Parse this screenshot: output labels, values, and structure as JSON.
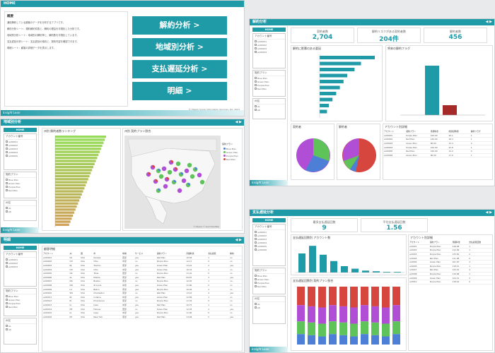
{
  "home": {
    "title": "HOME",
    "intro_heading": "概要",
    "intro_lines": [
      "通信解約している顧客のデータを分析するアプリです。",
      "解約分析シート：規約解約件数と、解約の理由を可視化した分析です。",
      "地域別分析シート：地域別の解約率と、解約数を可視化しています。",
      "支払遅延分析シート：支払遅延の傾向と、契約内容を確認できます。",
      "明細シート：顧客の詳細データを表示します。"
    ],
    "buttons": [
      "解約分析 >",
      "地域別分析 >",
      "支払遅延分析 >",
      "明細 >"
    ],
    "copyright": "© Hitachi Social Information Services, Ltd. 2021",
    "footer_logo": "Insight Lean"
  },
  "churn": {
    "title": "解約分析",
    "kpis": [
      {
        "label": "契約者数",
        "value": "2,704"
      },
      {
        "label": "解約リスクがある契約者数",
        "value": "204件"
      },
      {
        "label": "解約者数",
        "value": "456"
      }
    ],
    "reason_title": "解約に影響のある要因",
    "risk_title": "解約リスク",
    "trend_title": "将来の解約フラグ",
    "pie_titles": [
      "契約者",
      "解約者"
    ],
    "table_title": "アカウント別詳細",
    "table_headers": [
      "アカウント",
      "契約プラン",
      "月額料金",
      "総通話時間",
      "解約フラグ"
    ],
    "table_rows": [
      [
        "ac00001",
        "Purple Plan",
        "100.00",
        "20.1",
        "1"
      ],
      [
        "ac00002",
        "Red Plan",
        "120.00",
        "18.3",
        "1"
      ],
      [
        "ac00003",
        "Green Plan",
        "80.00",
        "15.4",
        "0"
      ],
      [
        "ac00004",
        "Purple Plan",
        "100.00",
        "22.8",
        "1"
      ],
      [
        "ac00005",
        "Red Plan",
        "120.00",
        "12.2",
        "0"
      ],
      [
        "ac00006",
        "Green Plan",
        "80.00",
        "17.0",
        "1"
      ]
    ]
  },
  "region": {
    "title": "地域別分析",
    "bar_title": "州別 解約者数ランキング",
    "map_title": "州別 契約プラン割合",
    "legend_title": "契約プラン",
    "legend_items": [
      "Blue Plan",
      "Green Plan",
      "Purple Plan",
      "Red Plan"
    ],
    "map_credit": "© Mapbox © OpenStreetMap"
  },
  "delay": {
    "title": "支払遅延分析",
    "kpis": [
      {
        "label": "最多支払遅延回数",
        "value": "9"
      },
      {
        "label": "平均支払遅延回数",
        "value": "1.56"
      }
    ],
    "hist_title": "支払遅延回数別 アカウント数",
    "stack_title": "支払遅延回数別 契約プラン割合",
    "table_title": "アカウント別詳細",
    "table_headers": [
      "アカウント",
      "契約プラン",
      "月額料金",
      "支払遅延回数"
    ],
    "table_rows": [
      [
        "ac0001",
        "Purple Plan",
        "118.08",
        "1"
      ],
      [
        "ac0002",
        "Purple Plan",
        "112.09",
        "1"
      ],
      [
        "ac0003",
        "Purple Plan",
        "133.50",
        "2"
      ],
      [
        "ac0004",
        "Red Plan",
        "111.08",
        "0"
      ],
      [
        "ac0005",
        "Green Plan",
        "101.87",
        "3"
      ],
      [
        "ac0006",
        "Purple Plan",
        "118.21",
        "1"
      ],
      [
        "ac0007",
        "Red Plan",
        "120.44",
        "4"
      ],
      [
        "ac0008",
        "Purple Plan",
        "119.98",
        "1"
      ],
      [
        "ac0009",
        "Green Plan",
        "124.31",
        "2"
      ],
      [
        "ac0010",
        "Purple Plan",
        "118.44",
        "0"
      ]
    ]
  },
  "detail": {
    "title": "明細",
    "section_title": "顧客明細",
    "table_headers": [
      "アカウント",
      "州",
      "国",
      "市",
      "地域",
      "サービス",
      "契約プラン",
      "月額料金",
      "支払遅延",
      "解約"
    ],
    "table_rows": [
      [
        "ac00001",
        "KS",
        "USA",
        "Kansas",
        "西部",
        "yes",
        "Red Plan",
        "10.56",
        "1",
        "no"
      ],
      [
        "ac00002",
        "OH",
        "USA",
        "Ohio",
        "中部",
        "no",
        "Purple Plan",
        "12.17",
        "0",
        "no"
      ],
      [
        "ac00003",
        "NJ",
        "USA",
        "Trenton",
        "東部",
        "yes",
        "Green Plan",
        "13.22",
        "2",
        "yes"
      ],
      [
        "ac00004",
        "OH",
        "USA",
        "Ohio",
        "中部",
        "yes",
        "Green Plan",
        "10.33",
        "1",
        "no"
      ],
      [
        "ac00005",
        "OK",
        "USA",
        "Tulsa",
        "西部",
        "no",
        "Purple Plan",
        "11.01",
        "0",
        "no"
      ],
      [
        "ac00006",
        "AL",
        "USA",
        "Mobile",
        "南部",
        "yes",
        "Red Plan",
        "09.87",
        "3",
        "yes"
      ],
      [
        "ac00007",
        "MA",
        "USA",
        "Boston",
        "東部",
        "no",
        "Purple Plan",
        "12.45",
        "1",
        "no"
      ],
      [
        "ac00008",
        "MO",
        "USA",
        "St Louis",
        "中部",
        "yes",
        "Green Plan",
        "11.66",
        "0",
        "no"
      ],
      [
        "ac00009",
        "LA",
        "USA",
        "Baton",
        "南部",
        "yes",
        "Purple Plan",
        "10.02",
        "2",
        "no"
      ],
      [
        "ac00010",
        "WV",
        "USA",
        "Charleston",
        "東部",
        "no",
        "Red Plan",
        "13.10",
        "4",
        "yes"
      ],
      [
        "ac00011",
        "IN",
        "USA",
        "Indiana",
        "中部",
        "yes",
        "Green Plan",
        "12.89",
        "1",
        "no"
      ],
      [
        "ac00012",
        "RI",
        "USA",
        "Providence",
        "東部",
        "no",
        "Purple Plan",
        "11.34",
        "0",
        "no"
      ],
      [
        "ac00013",
        "IA",
        "USA",
        "Iowa",
        "中部",
        "yes",
        "Red Plan",
        "10.75",
        "1",
        "no"
      ],
      [
        "ac00014",
        "MT",
        "USA",
        "Helena",
        "西部",
        "no",
        "Green Plan",
        "12.03",
        "2",
        "yes"
      ],
      [
        "ac00015",
        "IA",
        "USA",
        "Iowa",
        "中部",
        "yes",
        "Purple Plan",
        "11.90",
        "0",
        "no"
      ],
      [
        "ac00016",
        "NY",
        "USA",
        "New York",
        "東部",
        "yes",
        "Red Plan",
        "13.48",
        "5",
        "yes"
      ]
    ]
  },
  "filters": {
    "account": "アカウント番号",
    "plan": "契約プラン",
    "state": "州名",
    "plan_items": [
      "Blue Plan",
      "Green Plan",
      "Purple Plan",
      "Red Plan"
    ],
    "account_items": [
      "ac00001",
      "ac00002",
      "ac00003",
      "ac00004",
      "ac00005",
      "ac00006"
    ],
    "state_items": [
      "AL",
      "AK",
      "AZ",
      "AR"
    ]
  },
  "home_btn": "HOME",
  "colors": {
    "teal": "#1f9aa7",
    "purple": "#b04fd6",
    "green": "#5ec45a",
    "red": "#d6453e",
    "blue": "#4d7fd6"
  }
}
